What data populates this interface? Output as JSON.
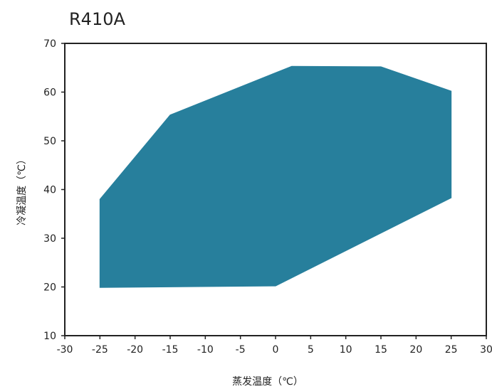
{
  "chart_data": {
    "type": "area",
    "title": "R410A",
    "xlabel": "蒸发温度（℃）",
    "ylabel": "冷凝温度（℃）",
    "xlim": [
      -30,
      30
    ],
    "ylim": [
      10,
      70
    ],
    "x_ticks": [
      -30,
      -25,
      -20,
      -15,
      -10,
      -5,
      0,
      5,
      10,
      15,
      20,
      25,
      30
    ],
    "y_ticks": [
      10,
      20,
      30,
      40,
      50,
      60,
      70
    ],
    "grid": false,
    "fill_color": "#277F9C",
    "series": [
      {
        "points": [
          {
            "x": -25,
            "y": 38
          },
          {
            "x": -15,
            "y": 55.3
          },
          {
            "x": 2.3,
            "y": 65.3
          },
          {
            "x": 15,
            "y": 65.2
          },
          {
            "x": 25,
            "y": 60.2
          },
          {
            "x": 25,
            "y": 38.3
          },
          {
            "x": 0,
            "y": 20.2
          },
          {
            "x": -25,
            "y": 19.9
          }
        ]
      }
    ]
  }
}
